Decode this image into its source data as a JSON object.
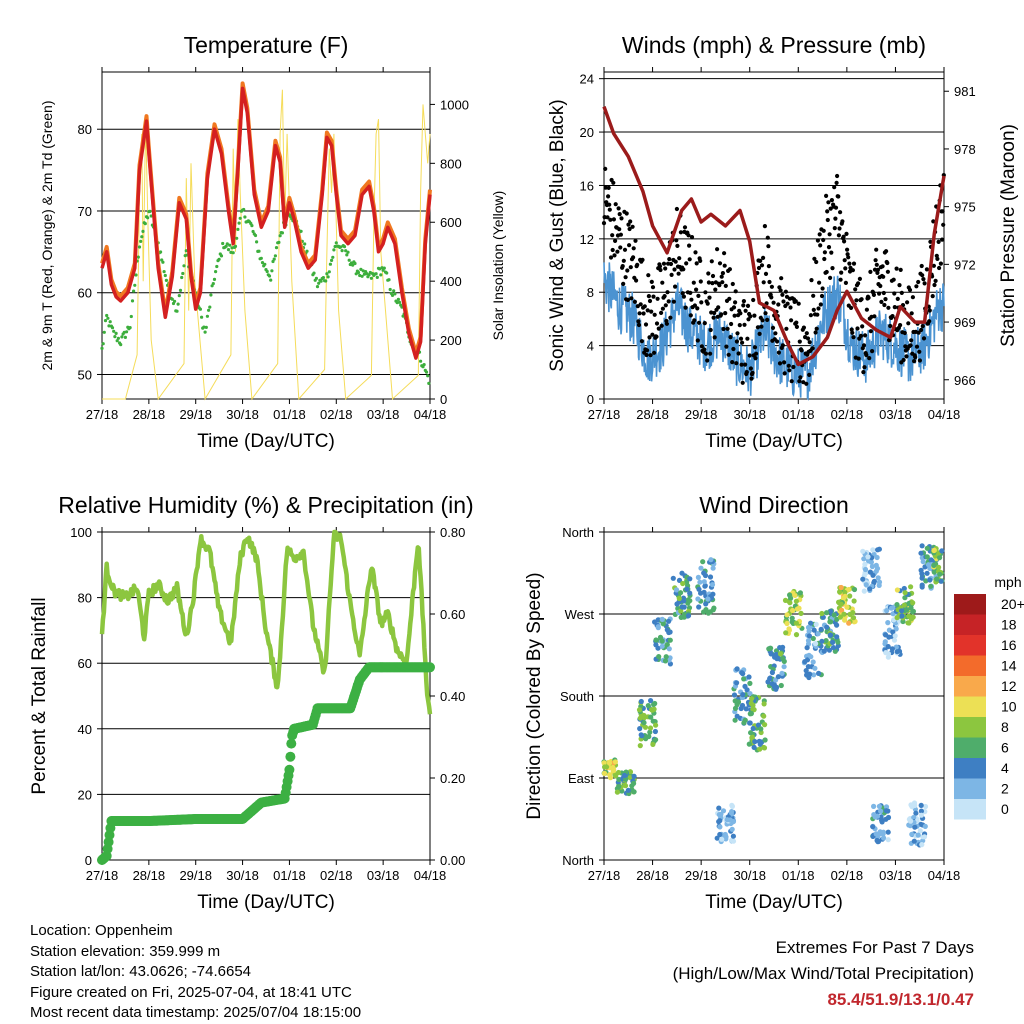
{
  "station": {
    "location": "Location: Oppenheim",
    "elevation": "Station elevation: 359.999 m",
    "latlon": "Station lat/lon: 43.0626; -74.6654",
    "created": "Figure created on Fri, 2025-07-04, at 18:41 UTC",
    "latest": "Most recent data timestamp: 2025/07/04 18:15:00"
  },
  "extremes": {
    "heading": "Extremes For Past 7 Days",
    "subheading": "(High/Low/Max Wind/Total Precipitation)",
    "values": "85.4/51.9/13.1/0.47",
    "color": "#c1272d"
  },
  "colors": {
    "temp_9m": "#d42020",
    "temp_2m": "#f07820",
    "dewpoint": "#3cae3c",
    "solar": "#f5dc5a",
    "wind": "#000000",
    "gust": "#4b93d1",
    "pressure": "#9b1b1b",
    "rh": "#8cc63f",
    "precip": "#3cb043"
  },
  "chart_data": [
    {
      "type": "line",
      "title": "Temperature (F)",
      "xlabel": "Time (Day/UTC)",
      "ylabel": "2m & 9m T (Red, Orange) & 2m Td (Green)",
      "ylabel_right": "Solar Insolation (Yellow)",
      "x_ticks": [
        "27/18",
        "28/18",
        "29/18",
        "30/18",
        "01/18",
        "02/18",
        "03/18",
        "04/18"
      ],
      "ylim": [
        47,
        87
      ],
      "y_ticks": [
        50,
        60,
        70,
        80
      ],
      "ylim_right": [
        0,
        1110
      ],
      "y_ticks_right": [
        0,
        200,
        400,
        600,
        800,
        1000
      ],
      "grid_y": [
        50,
        60,
        70,
        80
      ],
      "series": [
        {
          "key": "temp",
          "x": [
            0,
            0.1,
            0.2,
            0.3,
            0.4,
            0.55,
            0.7,
            0.8,
            0.95,
            1.0,
            1.1,
            1.2,
            1.35,
            1.5,
            1.65,
            1.8,
            1.9,
            2.0,
            2.1,
            2.25,
            2.4,
            2.55,
            2.7,
            2.8,
            2.9,
            3.0,
            3.1,
            3.25,
            3.4,
            3.55,
            3.7,
            3.8,
            3.9,
            4.0,
            4.1,
            4.25,
            4.4,
            4.55,
            4.7,
            4.8,
            4.9,
            5.0,
            5.1,
            5.25,
            5.4,
            5.55,
            5.7,
            5.8,
            5.9,
            6.0,
            6.1,
            6.25,
            6.4,
            6.55,
            6.7,
            6.8,
            6.9,
            7.0
          ],
          "values": [
            63,
            65,
            61,
            59.5,
            59,
            60,
            63,
            75,
            81,
            77,
            70,
            63,
            57,
            62,
            71,
            69,
            62,
            58,
            60,
            74,
            80,
            77,
            70,
            66,
            75,
            85,
            82,
            72,
            68,
            70,
            78,
            76,
            68,
            71,
            69,
            65,
            63,
            64,
            72,
            79,
            78,
            72,
            67,
            66,
            67,
            72,
            73,
            70,
            65,
            66,
            68,
            66,
            60,
            55,
            52,
            54,
            66,
            72
          ]
        },
        {
          "key": "dewpoint",
          "x": [
            0,
            0.1,
            0.25,
            0.4,
            0.6,
            0.8,
            1.0,
            1.2,
            1.4,
            1.6,
            1.8,
            2.0,
            2.2,
            2.4,
            2.6,
            2.8,
            3.0,
            3.2,
            3.4,
            3.6,
            3.8,
            4.0,
            4.2,
            4.4,
            4.6,
            4.8,
            5.0,
            5.2,
            5.4,
            5.6,
            5.8,
            6.0,
            6.2,
            6.4,
            6.6,
            6.8,
            7.0
          ],
          "values": [
            53,
            57,
            55,
            54,
            56,
            66,
            70,
            66,
            61,
            58,
            65,
            60,
            55,
            62,
            66,
            65,
            70,
            68,
            64,
            62,
            67,
            70,
            68,
            64,
            61,
            62,
            66,
            65,
            63,
            62,
            62,
            63,
            60,
            58,
            54,
            52,
            49
          ]
        },
        {
          "key": "solar",
          "x": [
            0,
            0.5,
            0.75,
            0.8,
            0.85,
            0.88,
            0.93,
            0.98,
            1.05,
            1.2,
            1.75,
            1.8,
            1.85,
            1.9,
            1.98,
            2.2,
            2.75,
            2.8,
            2.85,
            2.9,
            2.95,
            3.05,
            3.2,
            3.75,
            3.8,
            3.85,
            3.9,
            3.95,
            4.05,
            4.2,
            4.75,
            4.8,
            4.85,
            4.9,
            4.95,
            5.05,
            5.2,
            5.75,
            5.8,
            5.85,
            5.9,
            5.95,
            6.05,
            6.2,
            6.75,
            6.8,
            6.85,
            6.9,
            6.95,
            7.0
          ],
          "values": [
            0,
            0,
            150,
            700,
            900,
            400,
            950,
            600,
            200,
            0,
            120,
            750,
            300,
            800,
            400,
            0,
            150,
            850,
            500,
            950,
            700,
            300,
            0,
            120,
            900,
            1050,
            600,
            900,
            400,
            0,
            100,
            500,
            850,
            700,
            900,
            300,
            0,
            80,
            600,
            900,
            950,
            500,
            300,
            0,
            80,
            700,
            1000,
            900,
            800,
            900
          ]
        }
      ]
    },
    {
      "type": "line",
      "title": "Winds (mph) & Pressure (mb)",
      "xlabel": "Time (Day/UTC)",
      "ylabel": "Sonic Wind & Gust (Blue, Black)",
      "ylabel_right": "Station Pressure (Maroon)",
      "x_ticks": [
        "27/18",
        "28/18",
        "29/18",
        "30/18",
        "01/18",
        "02/18",
        "03/18",
        "04/18"
      ],
      "ylim": [
        0,
        24.5
      ],
      "y_ticks": [
        0,
        4,
        8,
        12,
        16,
        20,
        24
      ],
      "ylim_right": [
        965,
        982
      ],
      "y_ticks_right": [
        966,
        969,
        972,
        975,
        978,
        981
      ],
      "grid_y": [
        4,
        8,
        12,
        16,
        20,
        24
      ],
      "series": [
        {
          "key": "wind",
          "x": [
            0,
            0.3,
            0.6,
            0.9,
            1.2,
            1.5,
            1.8,
            2.1,
            2.4,
            2.7,
            3.0,
            3.3,
            3.6,
            3.9,
            4.2,
            4.5,
            4.8,
            5.1,
            5.4,
            5.7,
            6.0,
            6.3,
            6.6,
            6.9,
            7.0
          ],
          "values": [
            9,
            7,
            6,
            3,
            4,
            7,
            5,
            4,
            5,
            3,
            2,
            5,
            3,
            2,
            2,
            6,
            8,
            4,
            3,
            5,
            4,
            3,
            4,
            7,
            7
          ]
        },
        {
          "key": "gust",
          "x": [
            0,
            0.3,
            0.6,
            0.9,
            1.2,
            1.5,
            1.8,
            2.1,
            2.4,
            2.7,
            3.0,
            3.3,
            3.6,
            3.9,
            4.2,
            4.5,
            4.8,
            5.1,
            5.4,
            5.7,
            6.0,
            6.3,
            6.6,
            6.9,
            7.0
          ],
          "values": [
            15,
            12,
            10,
            6,
            7,
            11,
            9,
            6,
            9,
            5,
            4,
            10,
            6,
            4,
            4,
            11,
            14,
            7,
            5,
            9,
            7,
            5,
            7,
            13,
            14
          ]
        },
        {
          "key": "pressure",
          "x": [
            0,
            0.2,
            0.5,
            0.8,
            1.0,
            1.3,
            1.6,
            1.8,
            2.0,
            2.2,
            2.5,
            2.8,
            3.0,
            3.2,
            3.5,
            3.8,
            4.0,
            4.3,
            4.6,
            4.8,
            5.0,
            5.3,
            5.6,
            5.9,
            6.1,
            6.4,
            6.6,
            6.8,
            7.0
          ],
          "values": [
            980.2,
            978.8,
            977.6,
            975.8,
            974.0,
            972.6,
            974.8,
            975.4,
            974.2,
            974.6,
            974.0,
            974.8,
            973.2,
            970.0,
            969.6,
            967.8,
            966.8,
            967.2,
            968.2,
            969.6,
            970.6,
            969.2,
            968.6,
            968.2,
            969.8,
            969.0,
            969.0,
            973.6,
            976.6
          ]
        }
      ]
    },
    {
      "type": "line",
      "title": "Relative Humidity (%) & Precipitation (in)",
      "xlabel": "Time (Day/UTC)",
      "ylabel": "Percent & Total Rainfall",
      "x_ticks": [
        "27/18",
        "28/18",
        "29/18",
        "30/18",
        "01/18",
        "02/18",
        "03/18",
        "04/18"
      ],
      "ylim": [
        0,
        100
      ],
      "y_ticks": [
        0,
        20,
        40,
        60,
        80,
        100
      ],
      "ylim_right": [
        0,
        0.8
      ],
      "y_ticks_right": [
        "0.00",
        "0.20",
        "0.40",
        "0.60",
        "0.80"
      ],
      "grid_y": [
        20,
        40,
        60,
        80
      ],
      "series": [
        {
          "key": "rh",
          "x": [
            0,
            0.1,
            0.25,
            0.5,
            0.75,
            0.9,
            1.0,
            1.2,
            1.4,
            1.6,
            1.8,
            1.95,
            2.1,
            2.3,
            2.5,
            2.75,
            2.95,
            3.1,
            3.3,
            3.5,
            3.75,
            3.95,
            4.1,
            4.3,
            4.5,
            4.75,
            4.95,
            5.1,
            5.3,
            5.5,
            5.75,
            5.95,
            6.1,
            6.3,
            6.5,
            6.75,
            6.95,
            7.0
          ],
          "values": [
            69,
            89,
            82,
            80,
            83,
            68,
            81,
            84,
            79,
            83,
            68,
            80,
            98,
            94,
            76,
            66,
            92,
            99,
            92,
            70,
            52,
            95,
            92,
            94,
            72,
            56,
            99,
            98,
            78,
            62,
            90,
            72,
            75,
            64,
            60,
            98,
            48,
            44
          ]
        },
        {
          "key": "precip",
          "x": [
            0,
            0.1,
            0.2,
            1.0,
            2.0,
            3.0,
            3.2,
            3.4,
            3.9,
            4.0,
            4.05,
            4.1,
            4.5,
            4.6,
            5.3,
            5.5,
            5.7,
            7.0
          ],
          "values": [
            0,
            0.01,
            0.095,
            0.095,
            0.1,
            0.1,
            0.12,
            0.14,
            0.15,
            0.22,
            0.3,
            0.32,
            0.33,
            0.37,
            0.37,
            0.44,
            0.47,
            0.47
          ]
        }
      ]
    },
    {
      "type": "scatter",
      "title": "Wind Direction",
      "xlabel": "Time (Day/UTC)",
      "ylabel": "Direction (Colored By Speed)",
      "x_ticks": [
        "27/18",
        "28/18",
        "29/18",
        "30/18",
        "01/18",
        "02/18",
        "03/18",
        "04/18"
      ],
      "ylim": [
        0,
        360
      ],
      "y_ticks": [
        "North",
        "East",
        "South",
        "West",
        "North"
      ],
      "grid_y": [
        90,
        180,
        270
      ],
      "legend": {
        "title": "mph",
        "labels": [
          "20+",
          "18",
          "16",
          "14",
          "12",
          "10",
          "8",
          "6",
          "4",
          "2",
          "0"
        ],
        "colors": [
          "#9e1a1a",
          "#c62326",
          "#e2332a",
          "#f36b2b",
          "#f9a94b",
          "#ece055",
          "#8cc63f",
          "#4fad6b",
          "#3e7fc3",
          "#7db6e5",
          "#c6e4f7"
        ],
        "placement": "right"
      },
      "clusters": [
        {
          "x": 0.1,
          "dir": 100,
          "spread": 10,
          "speed": 9
        },
        {
          "x": 0.45,
          "dir": 85,
          "spread": 12,
          "speed": 6
        },
        {
          "x": 0.9,
          "dir": 150,
          "spread": 25,
          "speed": 6
        },
        {
          "x": 1.2,
          "dir": 240,
          "spread": 25,
          "speed": 4
        },
        {
          "x": 1.6,
          "dir": 290,
          "spread": 25,
          "speed": 5
        },
        {
          "x": 2.1,
          "dir": 300,
          "spread": 30,
          "speed": 4
        },
        {
          "x": 2.5,
          "dir": 40,
          "spread": 20,
          "speed": 2
        },
        {
          "x": 2.85,
          "dir": 180,
          "spread": 30,
          "speed": 4
        },
        {
          "x": 3.15,
          "dir": 150,
          "spread": 30,
          "speed": 6
        },
        {
          "x": 3.55,
          "dir": 210,
          "spread": 25,
          "speed": 5
        },
        {
          "x": 3.9,
          "dir": 270,
          "spread": 25,
          "speed": 8
        },
        {
          "x": 4.3,
          "dir": 230,
          "spread": 30,
          "speed": 3
        },
        {
          "x": 4.65,
          "dir": 250,
          "spread": 25,
          "speed": 5
        },
        {
          "x": 5.0,
          "dir": 280,
          "spread": 20,
          "speed": 9
        },
        {
          "x": 5.5,
          "dir": 320,
          "spread": 25,
          "speed": 2
        },
        {
          "x": 5.7,
          "dir": 40,
          "spread": 20,
          "speed": 3
        },
        {
          "x": 5.95,
          "dir": 250,
          "spread": 30,
          "speed": 2
        },
        {
          "x": 6.2,
          "dir": 280,
          "spread": 20,
          "speed": 7
        },
        {
          "x": 6.45,
          "dir": 40,
          "spread": 25,
          "speed": 2
        },
        {
          "x": 6.7,
          "dir": 320,
          "spread": 25,
          "speed": 4
        },
        {
          "x": 6.95,
          "dir": 325,
          "spread": 20,
          "speed": 7
        }
      ]
    }
  ]
}
